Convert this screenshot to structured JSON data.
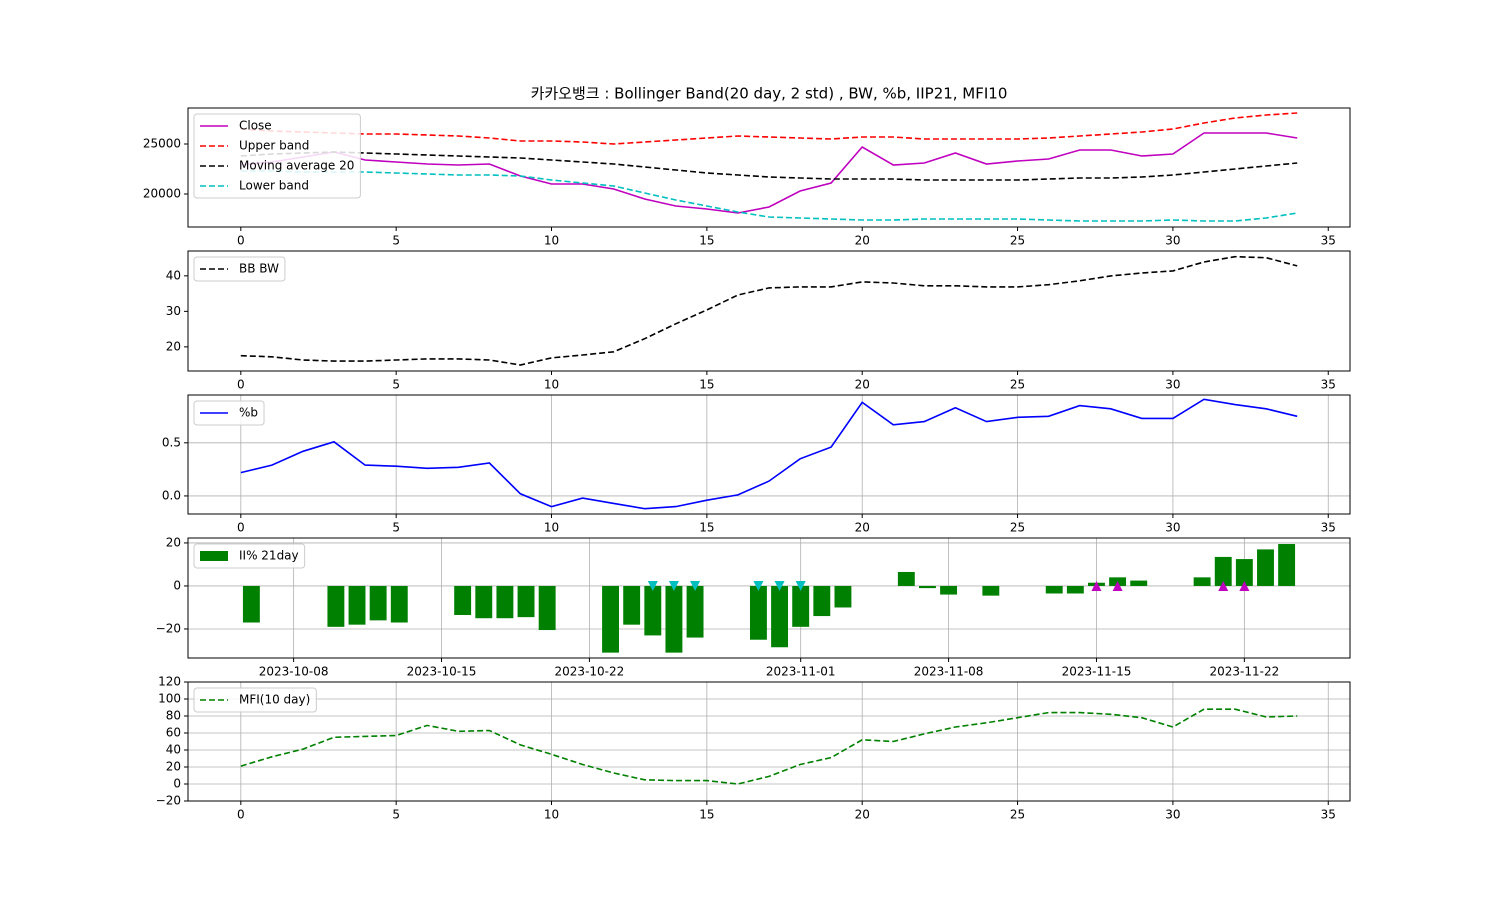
{
  "chart_data": [
    {
      "type": "line",
      "title": "카카오뱅크 : Bollinger Band(20 day, 2 std) , BW, %b, IIP21, MFI10",
      "x": [
        0,
        1,
        2,
        3,
        4,
        5,
        6,
        7,
        8,
        9,
        10,
        11,
        12,
        13,
        14,
        15,
        16,
        17,
        18,
        19,
        20,
        21,
        22,
        23,
        24,
        25,
        26,
        27,
        28,
        29,
        30,
        31,
        32,
        33,
        34
      ],
      "series": [
        {
          "name": "Close",
          "color": "#bf00bf",
          "dash": false,
          "values": [
            22900,
            23200,
            23700,
            24200,
            23400,
            23200,
            23000,
            22900,
            23000,
            21800,
            21000,
            21000,
            20500,
            19500,
            18800,
            18500,
            18100,
            18700,
            20300,
            21100,
            24700,
            22900,
            23100,
            24100,
            23000,
            23300,
            23500,
            24400,
            24400,
            23800,
            24000,
            26100,
            26100,
            26100,
            25600
          ]
        },
        {
          "name": "Upper band",
          "color": "#ff0000",
          "dash": true,
          "values": [
            26500,
            26300,
            26200,
            26100,
            26000,
            26000,
            25900,
            25800,
            25600,
            25300,
            25300,
            25200,
            25000,
            25200,
            25400,
            25600,
            25800,
            25700,
            25600,
            25500,
            25700,
            25700,
            25500,
            25500,
            25500,
            25500,
            25600,
            25800,
            26000,
            26200,
            26500,
            27100,
            27600,
            27900,
            28100
          ]
        },
        {
          "name": "Moving average 20",
          "color": "#000000",
          "dash": true,
          "values": [
            23800,
            24000,
            24100,
            24200,
            24100,
            24000,
            23900,
            23800,
            23700,
            23600,
            23400,
            23200,
            23000,
            22700,
            22400,
            22100,
            21900,
            21700,
            21600,
            21500,
            21500,
            21500,
            21400,
            21400,
            21400,
            21400,
            21500,
            21600,
            21600,
            21700,
            21900,
            22200,
            22500,
            22800,
            23100
          ]
        },
        {
          "name": "Lower band",
          "color": "#00bfbf",
          "dash": true,
          "values": [
            22300,
            22300,
            22200,
            22200,
            22200,
            22100,
            22000,
            21900,
            21900,
            21800,
            21400,
            21100,
            20800,
            20100,
            19400,
            18800,
            18200,
            17700,
            17600,
            17500,
            17400,
            17400,
            17500,
            17500,
            17500,
            17500,
            17400,
            17300,
            17300,
            17300,
            17400,
            17300,
            17300,
            17600,
            18100
          ]
        }
      ],
      "xlim": [
        -1.7,
        35.7
      ],
      "xticks": [
        0,
        5,
        10,
        15,
        20,
        25,
        30,
        35
      ],
      "ylim": [
        16700,
        28600
      ],
      "yticks": [
        20000,
        25000
      ],
      "grid": false,
      "legend": "upper left"
    },
    {
      "type": "line",
      "x": [
        0,
        1,
        2,
        3,
        4,
        5,
        6,
        7,
        8,
        9,
        10,
        11,
        12,
        13,
        14,
        15,
        16,
        17,
        18,
        19,
        20,
        21,
        22,
        23,
        24,
        25,
        26,
        27,
        28,
        29,
        30,
        31,
        32,
        33,
        34
      ],
      "series": [
        {
          "name": "BB BW",
          "color": "#000000",
          "dash": true,
          "values": [
            17.5,
            17.2,
            16.3,
            16,
            16,
            16.3,
            16.6,
            16.6,
            16.3,
            14.9,
            16.9,
            17.7,
            18.6,
            22.3,
            26.5,
            30.4,
            34.6,
            36.6,
            36.9,
            36.9,
            38.3,
            38,
            37.2,
            37.2,
            36.9,
            36.9,
            37.5,
            38.6,
            40,
            40.8,
            41.4,
            43.9,
            45.4,
            45.1,
            42.8
          ]
        }
      ],
      "xlim": [
        -1.7,
        35.7
      ],
      "xticks": [
        0,
        5,
        10,
        15,
        20,
        25,
        30,
        35
      ],
      "ylim": [
        13.2,
        47.0
      ],
      "yticks": [
        20,
        30,
        40
      ],
      "grid": false,
      "legend": "upper left"
    },
    {
      "type": "line",
      "x": [
        0,
        1,
        2,
        3,
        4,
        5,
        6,
        7,
        8,
        9,
        10,
        11,
        12,
        13,
        14,
        15,
        16,
        17,
        18,
        19,
        20,
        21,
        22,
        23,
        24,
        25,
        26,
        27,
        28,
        29,
        30,
        31,
        32,
        33,
        34
      ],
      "series": [
        {
          "name": "%b",
          "color": "#0000ff",
          "dash": false,
          "values": [
            0.22,
            0.29,
            0.42,
            0.51,
            0.29,
            0.28,
            0.26,
            0.27,
            0.31,
            0.02,
            -0.1,
            -0.02,
            -0.07,
            -0.12,
            -0.1,
            -0.04,
            0.01,
            0.14,
            0.35,
            0.46,
            0.88,
            0.67,
            0.7,
            0.83,
            0.7,
            0.74,
            0.75,
            0.85,
            0.82,
            0.73,
            0.73,
            0.91,
            0.86,
            0.82,
            0.75
          ]
        }
      ],
      "xlim": [
        -1.7,
        35.7
      ],
      "xticks": [
        0,
        5,
        10,
        15,
        20,
        25,
        30,
        35
      ],
      "ylim": [
        -0.17,
        0.95
      ],
      "yticks": [
        {
          "value": 0,
          "label": "0.0"
        },
        0.5
      ],
      "grid": true,
      "legend": "upper left"
    },
    {
      "type": "bar",
      "x": [
        "2023-10-06",
        "2023-10-10",
        "2023-10-11",
        "2023-10-12",
        "2023-10-13",
        "2023-10-16",
        "2023-10-17",
        "2023-10-18",
        "2023-10-19",
        "2023-10-20",
        "2023-10-23",
        "2023-10-24",
        "2023-10-25",
        "2023-10-26",
        "2023-10-27",
        "2023-10-30",
        "2023-10-31",
        "2023-11-01",
        "2023-11-02",
        "2023-11-03",
        "2023-11-06",
        "2023-11-07",
        "2023-11-08",
        "2023-11-09",
        "2023-11-10",
        "2023-11-13",
        "2023-11-14",
        "2023-11-15",
        "2023-11-16",
        "2023-11-17",
        "2023-11-20",
        "2023-11-21",
        "2023-11-22",
        "2023-11-23",
        "2023-11-24"
      ],
      "series": [
        {
          "name": "II% 21day",
          "color": "#008000",
          "values": [
            -17,
            -19,
            -18,
            -16,
            -17,
            -13.5,
            -15,
            -15,
            -14.5,
            -20.5,
            -31,
            -18,
            -23,
            -31,
            -24,
            -25,
            -28.5,
            -19,
            -14,
            -10,
            6.5,
            -1,
            -4,
            0,
            -4.5,
            -3.5,
            -3.5,
            1.5,
            4,
            2.5,
            4,
            13.5,
            12.5,
            17,
            19.5
          ]
        }
      ],
      "markers": [
        {
          "color": "#00bfbf",
          "shape": "down",
          "x": [
            "2023-10-25",
            "2023-10-26",
            "2023-10-27",
            "2023-10-30",
            "2023-10-31",
            "2023-11-01"
          ],
          "values": [
            0,
            0,
            0,
            0,
            0,
            0
          ]
        },
        {
          "color": "#bf00bf",
          "shape": "up",
          "x": [
            "2023-11-15",
            "2023-11-16",
            "2023-11-21",
            "2023-11-22"
          ],
          "values": [
            0,
            0,
            0,
            0
          ]
        }
      ],
      "xlim": [
        "2023-10-03",
        "2023-11-27"
      ],
      "xticks": [
        "2023-10-08",
        "2023-10-15",
        "2023-10-22",
        "2023-11-01",
        "2023-11-08",
        "2023-11-15",
        "2023-11-22"
      ],
      "ylim": [
        -33.5,
        22.3
      ],
      "yticks": [
        {
          "value": -20,
          "label": "−20"
        },
        0,
        20
      ],
      "grid": true,
      "legend": "upper left"
    },
    {
      "type": "line",
      "x": [
        0,
        1,
        2,
        3,
        4,
        5,
        6,
        7,
        8,
        9,
        10,
        11,
        12,
        13,
        14,
        15,
        16,
        17,
        18,
        19,
        20,
        21,
        22,
        23,
        24,
        25,
        26,
        27,
        28,
        29,
        30,
        31,
        32,
        33,
        34
      ],
      "series": [
        {
          "name": "MFI(10 day)",
          "color": "#008000",
          "dash": true,
          "values": [
            21,
            32,
            41,
            55,
            56,
            57,
            69,
            62,
            63,
            46,
            35,
            23,
            13,
            5,
            4,
            4,
            0,
            9,
            23,
            31,
            52,
            50,
            59,
            67,
            72,
            78,
            84,
            84,
            82,
            78,
            67,
            88,
            88,
            79,
            80
          ]
        }
      ],
      "xlim": [
        -1.7,
        35.7
      ],
      "xticks": [
        0,
        5,
        10,
        15,
        20,
        25,
        30,
        35
      ],
      "ylim": [
        -20,
        120
      ],
      "yticks": [
        {
          "value": -20,
          "label": "−20"
        },
        0,
        20,
        40,
        60,
        80,
        100,
        120
      ],
      "grid": true,
      "legend": "upper left"
    }
  ]
}
